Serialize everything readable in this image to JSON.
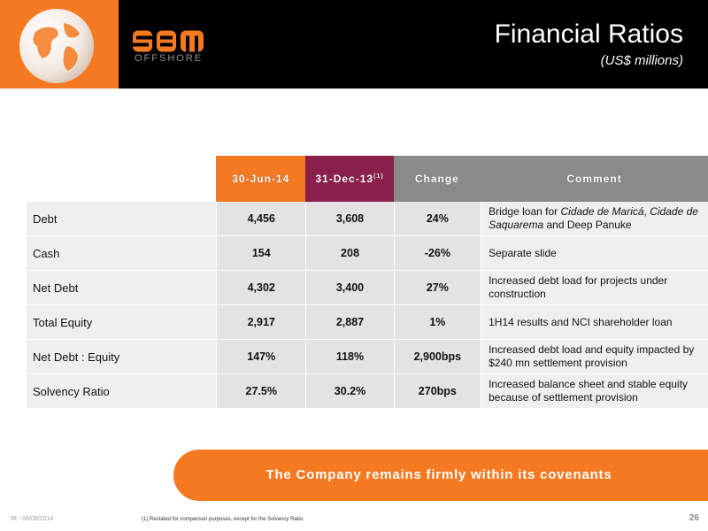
{
  "header": {
    "logo_text": "SBM",
    "logo_sub": "OFFSHORE",
    "title": "Financial Ratios",
    "subtitle": "(US$ millions)"
  },
  "colors": {
    "orange": "#f47920",
    "maroon": "#8b1f4b",
    "grey": "#8a8a8a",
    "black": "#000000"
  },
  "table": {
    "headers": {
      "col1": "30-Jun-14",
      "col2": "31-Dec-13",
      "col2_sup": "(1)",
      "col3": "Change",
      "col4": "Comment"
    },
    "rows": [
      {
        "label": "Debt",
        "v1": "4,456",
        "v2": "3,608",
        "change": "24%",
        "comment": {
          "pre": "Bridge loan for ",
          "it1": "Cidade de Maricá",
          "mid": ", ",
          "it2": "Cidade de Saquarema",
          "post": " and Deep Panuke"
        }
      },
      {
        "label": "Cash",
        "v1": "154",
        "v2": "208",
        "change": "-26%",
        "comment": "Separate slide"
      },
      {
        "label": "Net Debt",
        "v1": "4,302",
        "v2": "3,400",
        "change": "27%",
        "comment": "Increased debt load for projects under construction"
      },
      {
        "label": "Total Equity",
        "v1": "2,917",
        "v2": "2,887",
        "change": "1%",
        "comment": "1H14 results and NCI shareholder loan"
      },
      {
        "label": "Net Debt : Equity",
        "v1": "147%",
        "v2": "118%",
        "change": "2,900bps",
        "comment": "Increased debt load and equity impacted by $240 mn settlement provision"
      },
      {
        "label": "Solvency Ratio",
        "v1": "27.5%",
        "v2": "30.2%",
        "change": "270bps",
        "comment": "Increased balance sheet and stable equity because of settlement provision"
      }
    ]
  },
  "banner": "The Company remains firmly within its covenants",
  "footer": {
    "left": "IR - 06/08/2014",
    "note": "(1) Restated for comparison purposes, except for the Solvency Ratio.",
    "page": "26"
  }
}
